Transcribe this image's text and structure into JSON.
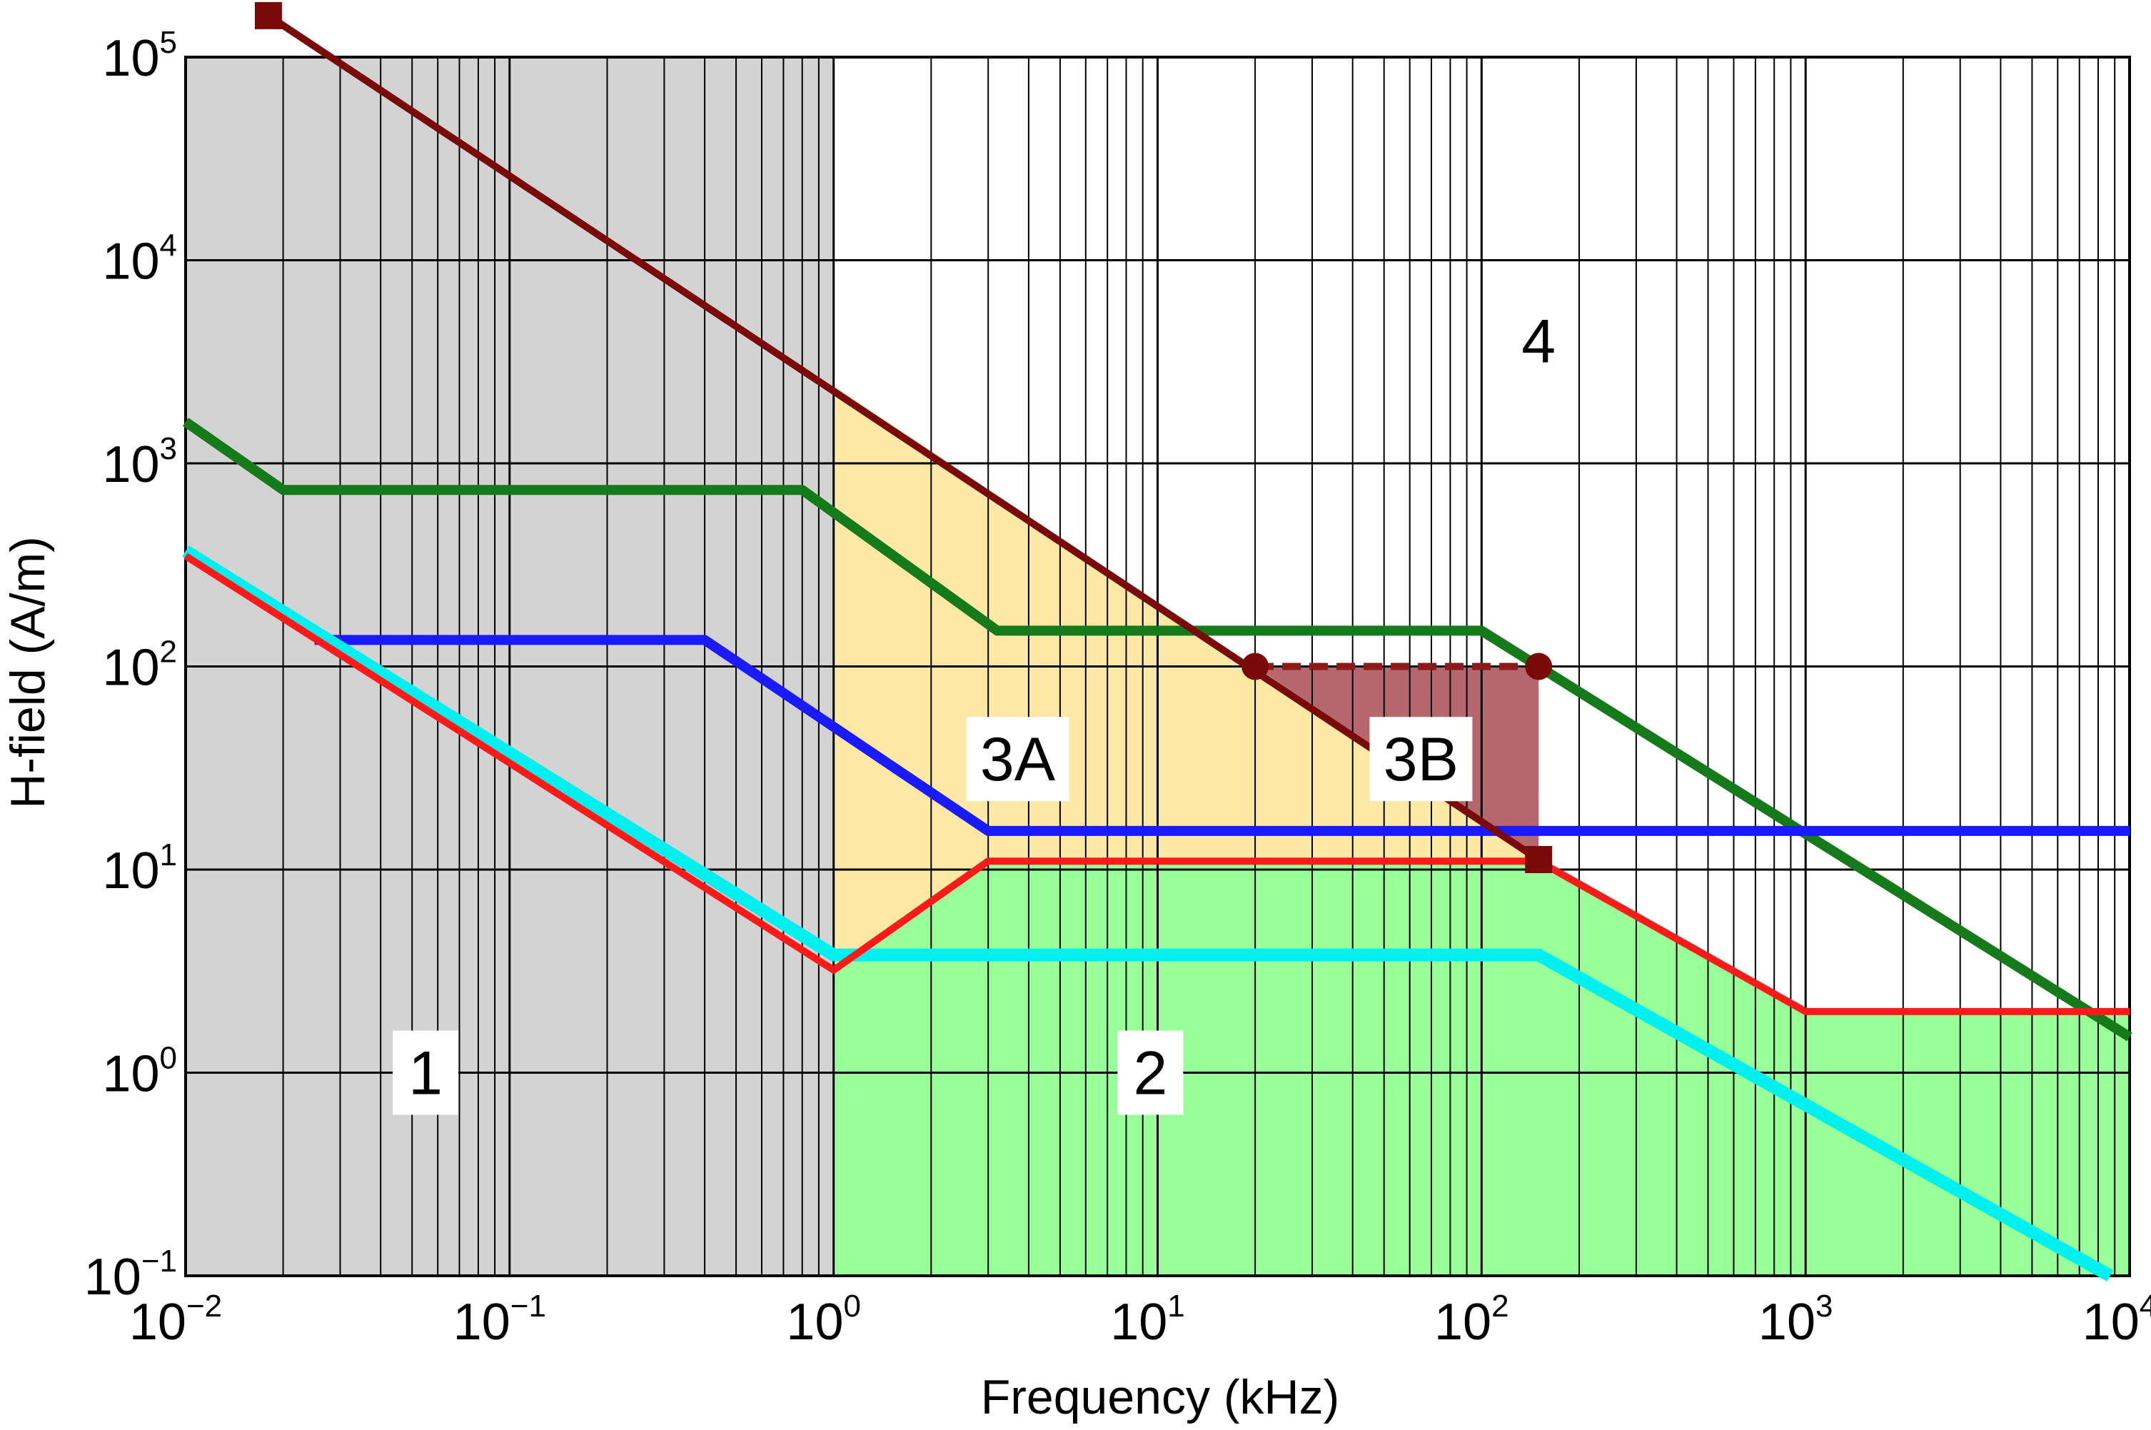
{
  "chart_data": {
    "type": "line",
    "title": "",
    "xlabel": "Frequency (kHz)",
    "ylabel": "H-field (A/m)",
    "xscale": "log",
    "yscale": "log",
    "xlim": [
      0.01,
      10000
    ],
    "ylim": [
      0.1,
      100000
    ],
    "grid": true,
    "x_ticks": [
      {
        "base": "10",
        "exp": "−2",
        "value": 0.01
      },
      {
        "base": "10",
        "exp": "−1",
        "value": 0.1
      },
      {
        "base": "10",
        "exp": "0",
        "value": 1
      },
      {
        "base": "10",
        "exp": "1",
        "value": 10
      },
      {
        "base": "10",
        "exp": "2",
        "value": 100
      },
      {
        "base": "10",
        "exp": "3",
        "value": 1000
      },
      {
        "base": "10",
        "exp": "4",
        "value": 10000
      }
    ],
    "y_ticks": [
      {
        "base": "10",
        "exp": "−1",
        "value": 0.1
      },
      {
        "base": "10",
        "exp": "0",
        "value": 1
      },
      {
        "base": "10",
        "exp": "1",
        "value": 10
      },
      {
        "base": "10",
        "exp": "2",
        "value": 100
      },
      {
        "base": "10",
        "exp": "3",
        "value": 1000
      },
      {
        "base": "10",
        "exp": "4",
        "value": 10000
      },
      {
        "base": "10",
        "exp": "5",
        "value": 100000
      }
    ],
    "regions": [
      {
        "label": "1",
        "color": "#d3d3d3",
        "polygon": [
          [
            0.01,
            0.1
          ],
          [
            1,
            0.1
          ],
          [
            1,
            100000
          ],
          [
            0.01,
            100000
          ]
        ],
        "label_at": [
          0.055,
          1.0
        ]
      },
      {
        "label": "2",
        "color": "#99ff99",
        "polygon": [
          [
            1,
            0.1
          ],
          [
            10000,
            0.1
          ],
          [
            10000,
            2
          ],
          [
            1000,
            2
          ],
          [
            150,
            11
          ],
          [
            3,
            11
          ],
          [
            1,
            3.2
          ]
        ],
        "label_at": [
          9.5,
          1.0
        ]
      },
      {
        "label": "3A",
        "color": "#fde8a6",
        "polygon": [
          [
            1,
            3.2
          ],
          [
            3,
            11
          ],
          [
            150,
            11
          ],
          [
            150,
            11.5
          ],
          [
            1,
            2400
          ]
        ],
        "label_at": [
          3.7,
          35
        ]
      },
      {
        "label": "3B",
        "color": "#b5676d",
        "polygon": [
          [
            20,
            100
          ],
          [
            150,
            100
          ],
          [
            150,
            11.5
          ]
        ],
        "label_at": [
          65,
          35
        ]
      },
      {
        "label": "4",
        "color": "#ffffff",
        "polygon": [],
        "label_at": [
          150,
          4000
        ]
      }
    ],
    "series": [
      {
        "name": "green",
        "color": "#157a1a",
        "width": 14,
        "x": [
          0.01,
          0.02,
          0.8,
          3.2,
          100,
          10000
        ],
        "y": [
          1600,
          740,
          740,
          150,
          150,
          1.5
        ]
      },
      {
        "name": "blue",
        "color": "#1a1aff",
        "width": 14,
        "x": [
          0.025,
          0.4,
          3.0,
          10000
        ],
        "y": [
          135,
          135,
          15.5,
          15.5
        ]
      },
      {
        "name": "cyan",
        "color": "#00f0f0",
        "width": 18,
        "x": [
          0.01,
          1.0,
          150,
          8700
        ],
        "y": [
          370,
          3.8,
          3.8,
          0.1
        ]
      },
      {
        "name": "red",
        "color": "#ff1a1a",
        "width": 10,
        "x": [
          0.01,
          1.0,
          3.0,
          150,
          1000,
          10000
        ],
        "y": [
          350,
          3.2,
          11,
          11,
          2,
          2
        ]
      },
      {
        "name": "dark red",
        "color": "#7a0a0a",
        "width": 10,
        "x": [
          0.018,
          150
        ],
        "y": [
          160000,
          11.2
        ]
      },
      {
        "name": "dark red dashed",
        "color": "#8b1a1a",
        "width": 10,
        "dashed": true,
        "x": [
          20,
          150
        ],
        "y": [
          100,
          100
        ]
      }
    ],
    "markers": [
      {
        "shape": "square",
        "color": "#7a0a0a",
        "x": 0.018,
        "y": 160000
      },
      {
        "shape": "square",
        "color": "#7a0a0a",
        "x": 150,
        "y": 11.2
      },
      {
        "shape": "circle",
        "color": "#7a0a0a",
        "x": 20,
        "y": 100
      },
      {
        "shape": "circle",
        "color": "#7a0a0a",
        "x": 150,
        "y": 100
      }
    ]
  }
}
